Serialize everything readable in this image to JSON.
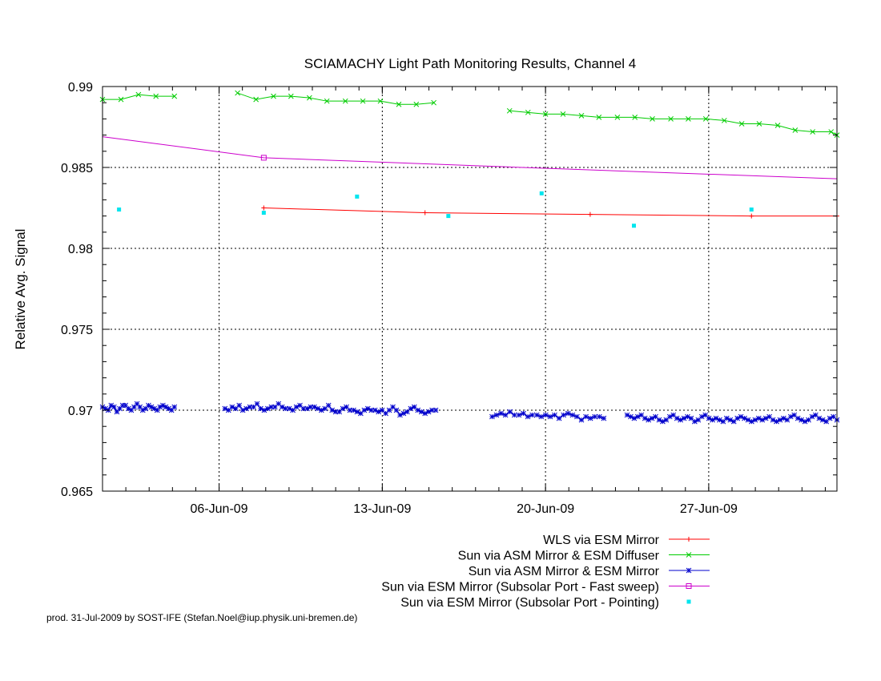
{
  "chart_data": {
    "type": "line",
    "title": "SCIAMACHY Light Path Monitoring Results, Channel 4",
    "ylabel": "Relative Avg. Signal",
    "xlabel": "",
    "ylim": [
      0.965,
      0.99
    ],
    "xlim": [
      "2009-06-01",
      "2009-07-02 12:00"
    ],
    "y_ticks": [
      0.965,
      0.97,
      0.975,
      0.98,
      0.985,
      0.99
    ],
    "y_tick_labels": [
      "0.965",
      "0.97",
      "0.975",
      "0.98",
      "0.985",
      "0.99"
    ],
    "x_ticks": [
      "2009-06-06",
      "2009-06-13",
      "2009-06-20",
      "2009-06-27"
    ],
    "x_tick_labels": [
      "06-Jun-09",
      "13-Jun-09",
      "20-Jun-09",
      "27-Jun-09"
    ],
    "grid": true,
    "legend_position": "bottom-right",
    "series": [
      {
        "name": "WLS via ESM Mirror",
        "color": "#ff0000",
        "marker": "plus",
        "style": "line",
        "x": [
          "2009-06-07 22:00",
          "2009-06-14 20:00",
          "2009-06-21 22:00",
          "2009-06-28 20:00",
          "2009-07-02 12:00"
        ],
        "y": [
          0.9825,
          0.9822,
          0.9821,
          0.982,
          0.982
        ]
      },
      {
        "name": "Sun via ASM Mirror & ESM Diffuser",
        "color": "#00cc00",
        "marker": "x",
        "style": "line",
        "segments": [
          {
            "x": [
              "2009-06-01",
              "2009-06-01 19:00",
              "2009-06-02 13:00",
              "2009-06-03 07:00",
              "2009-06-04 02:00"
            ],
            "y": [
              0.9892,
              0.9892,
              0.9895,
              0.9894,
              0.9894
            ]
          },
          {
            "x": [
              "2009-06-06 19:00",
              "2009-06-07 14:00",
              "2009-06-08 08:00",
              "2009-06-09 02:00",
              "2009-06-09 21:00",
              "2009-06-10 15:00",
              "2009-06-11 10:00",
              "2009-06-12 04:00",
              "2009-06-12 22:00",
              "2009-06-13 17:00",
              "2009-06-14 11:00",
              "2009-06-15 05:00"
            ],
            "y": [
              0.9896,
              0.9892,
              0.9894,
              0.9894,
              0.9893,
              0.9891,
              0.9891,
              0.9891,
              0.9891,
              0.9889,
              0.9889,
              0.989
            ]
          },
          {
            "x": [
              "2009-06-18 11:00",
              "2009-06-19 06:00",
              "2009-06-20 00:00",
              "2009-06-20 18:00",
              "2009-06-21 13:00",
              "2009-06-22 07:00",
              "2009-06-23 02:00",
              "2009-06-23 20:00",
              "2009-06-24 14:00",
              "2009-06-25 09:00",
              "2009-06-26 03:00",
              "2009-06-26 21:00",
              "2009-06-27 16:00",
              "2009-06-28 10:00",
              "2009-06-29 04:00",
              "2009-06-29 23:00",
              "2009-06-30 17:00",
              "2009-07-01 11:00",
              "2009-07-02 06:00",
              "2009-07-02 12:00"
            ],
            "y": [
              0.9885,
              0.9884,
              0.9883,
              0.9883,
              0.9882,
              0.9881,
              0.9881,
              0.9881,
              0.988,
              0.988,
              0.988,
              0.988,
              0.9879,
              0.9877,
              0.9877,
              0.9876,
              0.9873,
              0.9872,
              0.9872,
              0.987
            ]
          }
        ]
      },
      {
        "name": "Sun via ASM Mirror & ESM Mirror",
        "color": "#0000cc",
        "marker": "star",
        "style": "line",
        "segments": [
          {
            "x_range": [
              "2009-06-01",
              "2009-06-04 02:00"
            ],
            "y": [
              0.9702,
              0.9701,
              0.97,
              0.9703,
              0.9702,
              0.9699,
              0.9701,
              0.9703,
              0.9703,
              0.9701,
              0.97,
              0.9702,
              0.9704,
              0.9702,
              0.97,
              0.9701,
              0.9703,
              0.9702,
              0.9701,
              0.97,
              0.9702,
              0.9703,
              0.9702,
              0.9701,
              0.97,
              0.9702
            ]
          },
          {
            "x_range": [
              "2009-06-06 06:00",
              "2009-06-15 07:00"
            ],
            "y": [
              0.9701,
              0.97,
              0.9702,
              0.9701,
              0.9703,
              0.97,
              0.9701,
              0.9702,
              0.9702,
              0.9704,
              0.9701,
              0.97,
              0.9701,
              0.9702,
              0.9702,
              0.9704,
              0.9702,
              0.9701,
              0.9701,
              0.97,
              0.9702,
              0.9703,
              0.9701,
              0.9701,
              0.9702,
              0.9702,
              0.9701,
              0.97,
              0.9701,
              0.9703,
              0.97,
              0.9699,
              0.9699,
              0.9701,
              0.9702,
              0.97,
              0.97,
              0.9699,
              0.9698,
              0.97,
              0.9701,
              0.97,
              0.97,
              0.9699,
              0.97,
              0.9698,
              0.97,
              0.9702,
              0.97,
              0.9697,
              0.9698,
              0.9699,
              0.9701,
              0.9702,
              0.97,
              0.9699,
              0.9698,
              0.9699,
              0.97,
              0.97
            ]
          },
          {
            "x_range": [
              "2009-06-17 17:00",
              "2009-06-22 12:00"
            ],
            "y": [
              0.9696,
              0.9697,
              0.9698,
              0.9697,
              0.9699,
              0.9697,
              0.9697,
              0.9698,
              0.9696,
              0.9697,
              0.9697,
              0.9696,
              0.9697,
              0.9696,
              0.9697,
              0.9695,
              0.9697,
              0.9698,
              0.9697,
              0.9696,
              0.9694,
              0.9696,
              0.9695,
              0.9696,
              0.9696,
              0.9695
            ]
          },
          {
            "x_range": [
              "2009-06-23 12:00",
              "2009-07-02 12:00"
            ],
            "y": [
              0.9697,
              0.9696,
              0.9695,
              0.9696,
              0.9697,
              0.9695,
              0.9694,
              0.9695,
              0.9696,
              0.9694,
              0.9693,
              0.9694,
              0.9696,
              0.9697,
              0.9695,
              0.9694,
              0.9695,
              0.9696,
              0.9695,
              0.9693,
              0.9694,
              0.9696,
              0.9697,
              0.9695,
              0.9694,
              0.9695,
              0.9694,
              0.9693,
              0.9695,
              0.9694,
              0.9693,
              0.9695,
              0.9696,
              0.9695,
              0.9694,
              0.9693,
              0.9694,
              0.9695,
              0.9694,
              0.9695,
              0.9696,
              0.9694,
              0.9693,
              0.9694,
              0.9695,
              0.9694,
              0.9696,
              0.9697,
              0.9695,
              0.9694,
              0.9693,
              0.9694,
              0.9696,
              0.9697,
              0.9695,
              0.9694,
              0.9693,
              0.9695,
              0.9696,
              0.9694
            ]
          }
        ]
      },
      {
        "name": "Sun via ESM Mirror (Subsolar Port - Fast sweep)",
        "color": "#cc00cc",
        "marker": "square",
        "style": "line",
        "x": [
          "2009-06-01",
          "2009-06-07 22:00",
          "2009-06-19 00:00",
          "2009-07-02 12:00"
        ],
        "y": [
          0.9869,
          0.9856,
          0.985,
          0.9843
        ],
        "marker_points": [
          1
        ]
      },
      {
        "name": "Sun via ESM Mirror (Subsolar Port - Pointing)",
        "color": "#00e5ee",
        "marker": "filled-square",
        "style": "points",
        "x": [
          "2009-06-01 17:00",
          "2009-06-07 22:00",
          "2009-06-11 22:00",
          "2009-06-15 20:00",
          "2009-06-19 20:00",
          "2009-06-23 19:00",
          "2009-06-28 20:00"
        ],
        "y": [
          0.9824,
          0.9822,
          0.9832,
          0.982,
          0.9834,
          0.9814,
          0.9824
        ]
      }
    ]
  },
  "footer": {
    "text": "prod. 31-Jul-2009 by SOST-IFE (Stefan.Noel@iup.physik.uni-bremen.de)"
  }
}
